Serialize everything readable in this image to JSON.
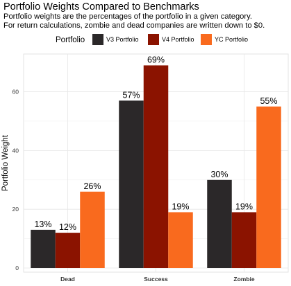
{
  "chart_data": {
    "type": "bar",
    "title": "Portfolio Weights Compared to Benchmarks",
    "subtitle": [
      "Portfolio weights are the percentages of the portfolio in a given category.",
      "For return calculations, zombie and dead companies are written down to $0."
    ],
    "xlabel": "",
    "ylabel": "Portfolio Weight",
    "legend_title": "Portfolio",
    "legend_position": "top",
    "categories": [
      "Dead",
      "Success",
      "Zombie"
    ],
    "series": [
      {
        "name": "V3 Portfolio",
        "color": "#2b2829",
        "values": [
          13,
          57,
          30
        ],
        "labels": [
          "13%",
          "57%",
          "30%"
        ]
      },
      {
        "name": "V4 Portfolio",
        "color": "#8b1300",
        "values": [
          12,
          69,
          19
        ],
        "labels": [
          "12%",
          "69%",
          "19%"
        ]
      },
      {
        "name": "YC Portfolio",
        "color": "#f96a1e",
        "values": [
          26,
          19,
          55
        ],
        "labels": [
          "26%",
          "19%",
          "55%"
        ]
      }
    ],
    "yticks": [
      0,
      20,
      40,
      60
    ],
    "ylim": [
      0,
      72.4
    ],
    "grid": true
  }
}
